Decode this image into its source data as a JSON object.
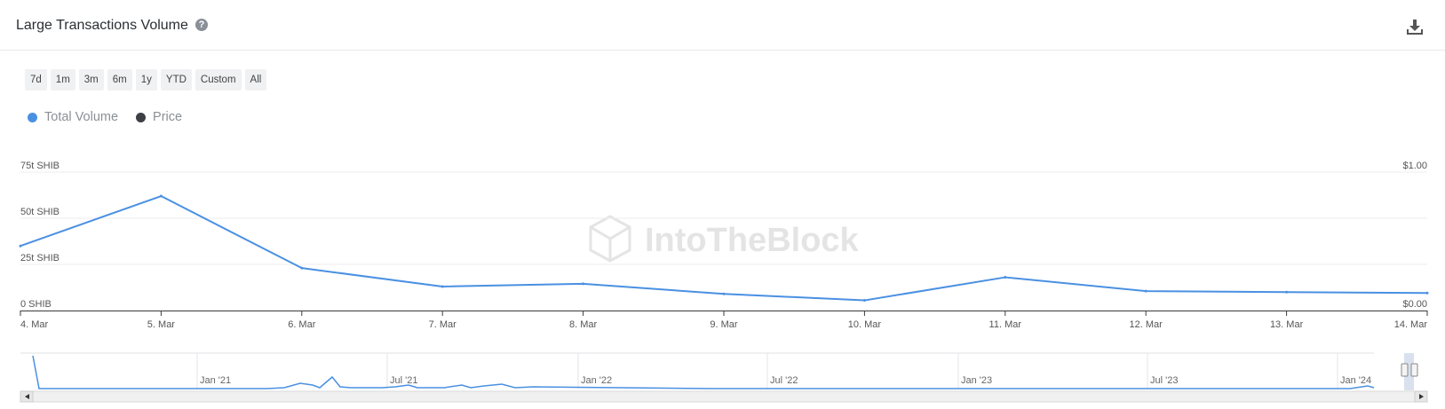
{
  "header": {
    "title": "Large Transactions Volume",
    "help_icon": "question-circle-icon",
    "download_icon": "download-icon"
  },
  "ranges": [
    "7d",
    "1m",
    "3m",
    "6m",
    "1y",
    "YTD",
    "Custom",
    "All"
  ],
  "legend": [
    {
      "label": "Total Volume",
      "color": "#4a90e2"
    },
    {
      "label": "Price",
      "color": "#3c3f44"
    }
  ],
  "watermark": "IntoTheBlock",
  "chart_data": {
    "type": "line",
    "x": [
      "4. Mar",
      "5. Mar",
      "6. Mar",
      "7. Mar",
      "8. Mar",
      "9. Mar",
      "10. Mar",
      "11. Mar",
      "12. Mar",
      "13. Mar",
      "14. Mar"
    ],
    "series": [
      {
        "name": "Total Volume",
        "values": [
          35,
          62,
          23,
          13,
          14.5,
          9,
          5.5,
          18,
          10.5,
          10,
          9.5
        ],
        "axis": "left"
      }
    ],
    "left_axis": {
      "ticks": [
        "0 SHIB",
        "25t SHIB",
        "50t SHIB",
        "75t SHIB"
      ],
      "values": [
        0,
        25,
        50,
        75
      ],
      "range": [
        0,
        75
      ]
    },
    "right_axis": {
      "ticks": [
        "$0.00",
        "$1.00"
      ],
      "range": [
        0,
        1
      ]
    },
    "grid": true,
    "legend_position": "top-left",
    "navigator": {
      "labels": [
        "Jan '21",
        "Jul '21",
        "Jan '22",
        "Jul '22",
        "Jan '23",
        "Jul '23",
        "Jan '24"
      ]
    }
  }
}
